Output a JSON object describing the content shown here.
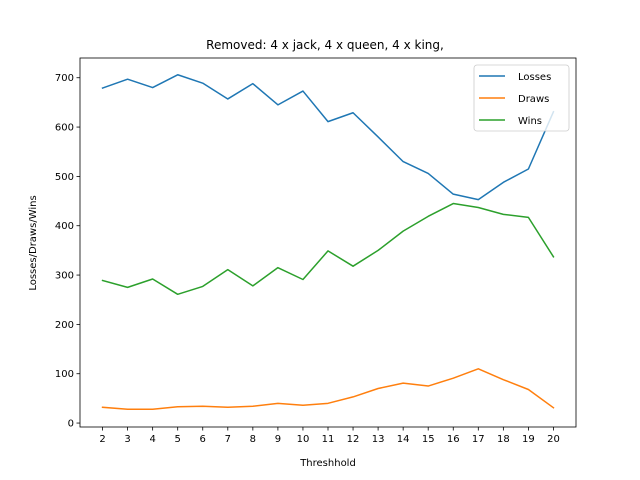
{
  "chart_data": {
    "type": "line",
    "title": "Removed: 4 x jack, 4 x queen, 4 x king,",
    "xlabel": "Threshhold",
    "ylabel": "Losses/Draws/Wins",
    "x": [
      2,
      3,
      4,
      5,
      6,
      7,
      8,
      9,
      10,
      11,
      12,
      13,
      14,
      15,
      16,
      17,
      18,
      19,
      20
    ],
    "xticks": [
      "2",
      "3",
      "4",
      "5",
      "6",
      "7",
      "8",
      "9",
      "10",
      "11",
      "12",
      "13",
      "14",
      "15",
      "16",
      "17",
      "18",
      "19",
      "20"
    ],
    "yticks": [
      0,
      100,
      200,
      300,
      400,
      500,
      600,
      700
    ],
    "ylim": [
      -8,
      740
    ],
    "xlim": [
      1.1,
      20.9
    ],
    "grid": false,
    "legend_position": "top-right",
    "series": [
      {
        "name": "Losses",
        "color": "#1f77b4",
        "values": [
          679,
          697,
          680,
          706,
          689,
          657,
          688,
          645,
          673,
          611,
          629,
          580,
          530,
          506,
          464,
          453,
          488,
          515,
          631
        ]
      },
      {
        "name": "Draws",
        "color": "#ff7f0e",
        "values": [
          32,
          28,
          28,
          33,
          34,
          32,
          34,
          40,
          36,
          40,
          53,
          70,
          81,
          75,
          91,
          110,
          88,
          68,
          31
        ]
      },
      {
        "name": "Wins",
        "color": "#2ca02c",
        "values": [
          289,
          275,
          292,
          261,
          277,
          311,
          278,
          315,
          291,
          349,
          318,
          350,
          389,
          419,
          445,
          437,
          423,
          417,
          337
        ]
      }
    ]
  }
}
